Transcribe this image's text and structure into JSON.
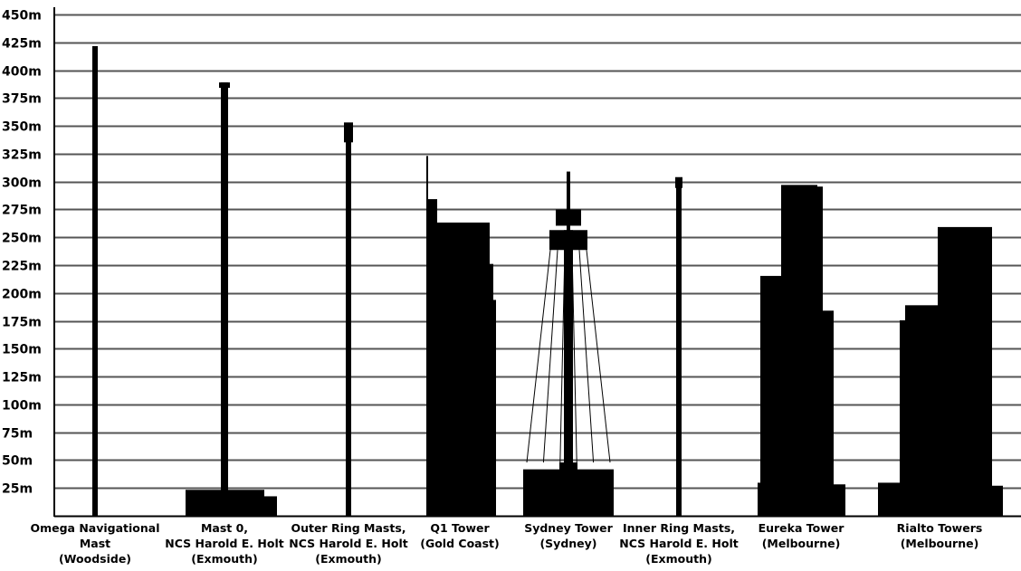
{
  "chart_data": {
    "type": "bar",
    "title": "",
    "xlabel": "",
    "ylabel": "",
    "ylim": [
      0,
      450
    ],
    "y_ticks": [
      "25m",
      "50m",
      "75m",
      "100m",
      "125m",
      "150m",
      "175m",
      "200m",
      "225m",
      "250m",
      "275m",
      "300m",
      "325m",
      "350m",
      "375m",
      "400m",
      "425m",
      "450m"
    ],
    "y_tick_values": [
      25,
      50,
      75,
      100,
      125,
      150,
      175,
      200,
      225,
      250,
      275,
      300,
      325,
      350,
      375,
      400,
      425,
      450
    ],
    "grid": true,
    "categories": [
      [
        "Omega Navigational",
        "Mast",
        "(Woodside)"
      ],
      [
        "Mast 0,",
        "NCS Harold E. Holt",
        "(Exmouth)"
      ],
      [
        "Outer Ring Masts,",
        "NCS Harold E. Holt",
        "(Exmouth)"
      ],
      [
        "Q1 Tower",
        "(Gold Coast)"
      ],
      [
        "Sydney Tower",
        "(Sydney)"
      ],
      [
        "Inner Ring Masts,",
        "NCS Harold E. Holt",
        "(Exmouth)"
      ],
      [
        "Eureka Tower",
        "(Melbourne)"
      ],
      [
        "Rialto Towers",
        "(Melbourne)"
      ]
    ],
    "values": [
      428,
      389,
      364,
      323,
      309,
      304,
      297,
      270
    ],
    "colors": {
      "bar": "#000000",
      "grid": "#555555",
      "background": "#ffffff"
    }
  }
}
